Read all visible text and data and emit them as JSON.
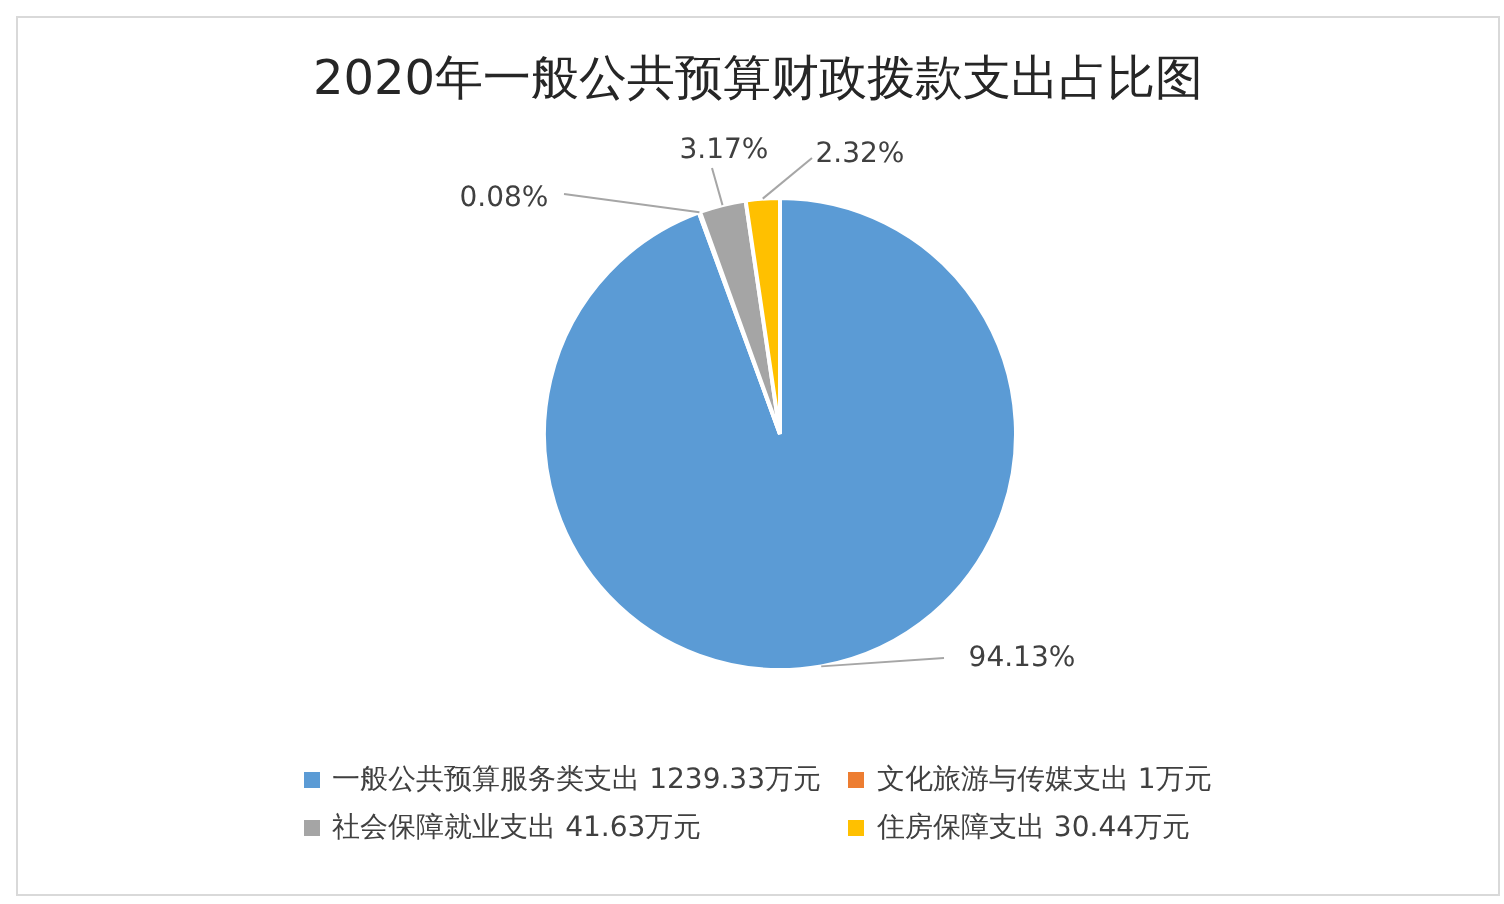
{
  "chart_data": {
    "type": "pie",
    "title": "2020年一般公共预算财政拨款支出占比图",
    "categories": [
      "一般公共预算服务类支出 1239.33万元",
      "文化旅游与传媒支出 1万元",
      "社会保障就业支出 41.63万元",
      "住房保障支出 30.44万元"
    ],
    "values": [
      94.13,
      0.08,
      3.17,
      2.32
    ],
    "colors": [
      "#5b9bd5",
      "#ed7d31",
      "#a5a5a5",
      "#ffc000"
    ],
    "value_labels": [
      "94.13%",
      "0.08%",
      "3.17%",
      "2.32%"
    ],
    "legend": "bottom"
  }
}
